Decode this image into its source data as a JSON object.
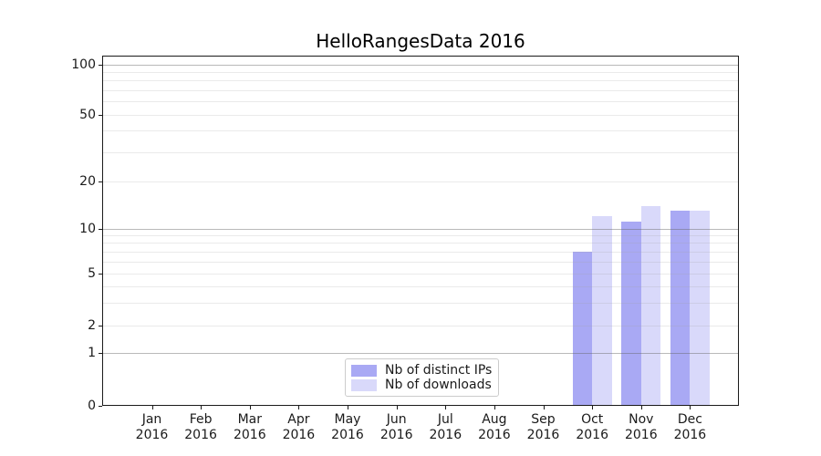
{
  "title": "HelloRangesData 2016",
  "chart_data": {
    "type": "bar",
    "title": "HelloRangesData 2016",
    "categories": [
      "Jan",
      "Feb",
      "Mar",
      "Apr",
      "May",
      "Jun",
      "Jul",
      "Aug",
      "Sep",
      "Oct",
      "Nov",
      "Dec"
    ],
    "year": "2016",
    "series": [
      {
        "name": "Nb of distinct IPs",
        "color": "#a9a9f4",
        "values": [
          0,
          0,
          0,
          0,
          0,
          0,
          0,
          0,
          0,
          7,
          11,
          13
        ]
      },
      {
        "name": "Nb of downloads",
        "color": "#d9d9fa",
        "values": [
          0,
          0,
          0,
          0,
          0,
          0,
          0,
          0,
          0,
          12,
          14,
          13
        ]
      }
    ],
    "xlabel": "",
    "ylabel": "",
    "y_scale": "symlog-like (linear 0-1, log above)",
    "y_ticks": [
      0,
      1,
      2,
      5,
      10,
      20,
      50,
      100
    ],
    "y_minor_ticks": [
      2,
      3,
      4,
      5,
      6,
      7,
      8,
      9,
      20,
      30,
      40,
      50,
      60,
      70,
      80,
      90
    ],
    "ylim": [
      0,
      115
    ],
    "grid": true,
    "legend_position": "lower center inside plot",
    "colors": {
      "major_grid": "#b4b4b4",
      "minor_grid": "#e9e9e9",
      "spine": "#1a1a1a",
      "background": "#ffffff"
    }
  }
}
